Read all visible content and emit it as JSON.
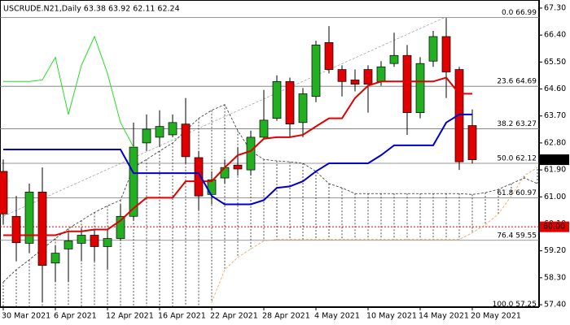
{
  "chart_data": {
    "type": "candlestick",
    "title": "USCRUDE.N21,Daily  63.38 63.92 62.11 62.24",
    "categories": [
      "30 Mar 2021",
      null,
      null,
      null,
      "6 Apr 2021",
      null,
      null,
      null,
      "12 Apr 2021",
      null,
      null,
      null,
      "16 Apr 2021",
      null,
      null,
      null,
      "22 Apr 2021",
      null,
      null,
      null,
      "28 Apr 2021",
      null,
      null,
      null,
      "4 May 2021",
      null,
      null,
      null,
      "10 May 2021",
      null,
      null,
      null,
      "14 May 2021",
      null,
      null,
      null,
      "20 May 2021",
      null,
      null,
      null,
      null,
      null
    ],
    "up_color": "#22b022",
    "down_color": "#e00000",
    "ohlc": {
      "open": [
        61.85,
        60.35,
        59.45,
        61.16,
        58.79,
        59.26,
        59.45,
        59.72,
        59.34,
        59.61,
        60.35,
        62.8,
        62.99,
        63.07,
        63.43,
        62.31,
        61.08,
        61.63,
        62.06,
        61.9,
        62.99,
        63.62,
        64.85,
        63.48,
        64.35,
        66.15,
        65.25,
        64.9,
        65.25,
        64.85,
        65.45,
        65.72,
        63.81,
        65.53,
        66.35,
        65.25,
        63.38,
        null,
        null,
        null,
        null,
        null
      ],
      "high": [
        62.25,
        61.03,
        61.44,
        61.98,
        59.39,
        59.8,
        59.94,
        59.94,
        59.94,
        60.75,
        63.48,
        63.75,
        63.89,
        63.75,
        64.3,
        62.53,
        61.85,
        62.25,
        62.66,
        63.21,
        64.57,
        65.06,
        64.98,
        64.63,
        66.21,
        66.7,
        65.39,
        65.25,
        65.39,
        65.53,
        66.48,
        66.07,
        65.66,
        66.54,
        66.97,
        65.34,
        63.92,
        null,
        null,
        null,
        null,
        null
      ],
      "low": [
        60.07,
        58.85,
        59.12,
        57.48,
        58.16,
        58.16,
        58.85,
        58.85,
        58.57,
        59.53,
        60.21,
        62.53,
        62.66,
        62.99,
        62.12,
        60.54,
        60.75,
        61.44,
        61.71,
        61.71,
        62.94,
        63.54,
        62.99,
        62.99,
        64.16,
        65.12,
        64.35,
        64.52,
        63.81,
        64.71,
        65.34,
        63.07,
        63.62,
        65.34,
        64.3,
        61.9,
        62.11,
        null,
        null,
        null,
        null,
        null
      ],
      "close": [
        60.43,
        59.47,
        61.16,
        58.71,
        59.12,
        59.53,
        59.72,
        59.34,
        59.61,
        60.35,
        62.66,
        63.26,
        63.35,
        63.48,
        62.34,
        61.03,
        61.57,
        61.98,
        61.93,
        62.99,
        63.56,
        64.85,
        63.43,
        64.44,
        66.07,
        65.25,
        64.85,
        64.76,
        64.76,
        65.34,
        65.72,
        63.81,
        65.45,
        66.35,
        65.17,
        62.17,
        62.24,
        null,
        null,
        null,
        null,
        null
      ]
    },
    "series": [
      {
        "color": "#e00000",
        "width": 2,
        "values": [
          59.72,
          59.72,
          59.72,
          59.72,
          59.72,
          59.85,
          59.85,
          59.91,
          59.91,
          60.21,
          60.62,
          60.97,
          60.97,
          60.97,
          61.52,
          61.52,
          61.52,
          61.98,
          62.39,
          62.53,
          62.94,
          62.99,
          62.99,
          63.07,
          63.35,
          63.62,
          63.62,
          64.3,
          64.71,
          64.85,
          64.85,
          64.85,
          64.85,
          64.85,
          64.98,
          64.44,
          64.44,
          null,
          null,
          null,
          null,
          null
        ]
      },
      {
        "color": "#0000cc",
        "width": 2,
        "values": [
          62.58,
          62.58,
          62.58,
          62.58,
          62.58,
          62.58,
          62.58,
          62.58,
          62.58,
          62.58,
          61.79,
          61.79,
          61.79,
          61.79,
          61.79,
          61.79,
          61.03,
          60.75,
          60.75,
          60.75,
          60.89,
          61.3,
          61.35,
          61.52,
          61.85,
          62.12,
          62.12,
          62.12,
          62.12,
          62.39,
          62.72,
          62.72,
          62.72,
          62.72,
          63.48,
          63.75,
          63.75,
          null,
          null,
          null,
          null,
          null
        ]
      },
      {
        "color": "#22dd22",
        "width": 1,
        "values": [
          64.85,
          64.85,
          64.85,
          64.9,
          65.66,
          63.75,
          65.39,
          66.35,
          65.12,
          63.48,
          62.66,
          null,
          null,
          null,
          null,
          null,
          null,
          null,
          null,
          null,
          null,
          null,
          null,
          null,
          null,
          null,
          null,
          null,
          null,
          null,
          null,
          null,
          null,
          null,
          null,
          null,
          null,
          null,
          null,
          null,
          null,
          null
        ]
      }
    ],
    "cloud": {
      "span_a": {
        "color": "#333333",
        "values": [
          58.16,
          58.57,
          58.9,
          59.26,
          59.61,
          59.94,
          60.21,
          60.48,
          60.7,
          60.89,
          61.98,
          62.25,
          62.53,
          62.8,
          63.21,
          63.62,
          63.89,
          64.08,
          63.21,
          62.53,
          62.25,
          62.2,
          62.17,
          62.12,
          61.85,
          61.44,
          61.3,
          61.11,
          61.11,
          61.11,
          61.11,
          61.11,
          61.11,
          61.11,
          61.11,
          61.11,
          61.08,
          61.14,
          61.25,
          61.44,
          61.63,
          61.44
        ]
      },
      "span_b": {
        "color": "#f0a050",
        "values": [
          null,
          null,
          null,
          null,
          null,
          null,
          null,
          null,
          null,
          null,
          null,
          null,
          null,
          null,
          null,
          null,
          57.48,
          58.57,
          58.98,
          59.26,
          59.53,
          59.58,
          59.58,
          59.58,
          59.58,
          59.58,
          59.58,
          59.58,
          59.58,
          59.58,
          59.58,
          59.58,
          59.58,
          59.58,
          59.58,
          59.58,
          59.8,
          60.07,
          60.43,
          61.03,
          61.71,
          61.98
        ]
      },
      "hatch_color": "#222222"
    },
    "fib_levels": [
      {
        "value": 66.99,
        "label": "0.0 66.99"
      },
      {
        "value": 64.69,
        "label": "23.6 64.69"
      },
      {
        "value": 63.27,
        "label": "38.2 63.27"
      },
      {
        "value": 62.12,
        "label": "50.0 62.12"
      },
      {
        "value": 60.97,
        "label": "61.8 60.97"
      },
      {
        "value": 59.55,
        "label": "76.4 59.55"
      },
      {
        "value": 57.25,
        "label": "100.0 57.25"
      }
    ],
    "fib_color": "#777777",
    "level_line": {
      "value": 60,
      "color": "#e00000"
    },
    "price_tags": [
      {
        "value": 62.24,
        "color": "#000000"
      },
      {
        "value": 60,
        "label": "60.00",
        "color": "#e00000"
      }
    ],
    "ylim": [
      57.32,
      67.57
    ],
    "yticks": [
      {
        "value": 67.3,
        "label": "67.30"
      },
      {
        "value": 66.4,
        "label": "66.40"
      },
      {
        "value": 65.5,
        "label": "65.50"
      },
      {
        "value": 64.6,
        "label": "64.60"
      },
      {
        "value": 63.7,
        "label": "63.70"
      },
      {
        "value": 62.8,
        "label": "62.80"
      },
      {
        "value": 61.9,
        "label": "61.90"
      },
      {
        "value": 61.0,
        "label": "61.00"
      },
      {
        "value": 60.1,
        "label": "60.10"
      },
      {
        "value": 59.2,
        "label": "59.20"
      },
      {
        "value": 58.3,
        "label": "58.30"
      },
      {
        "value": 57.4,
        "label": "57.40"
      }
    ]
  }
}
